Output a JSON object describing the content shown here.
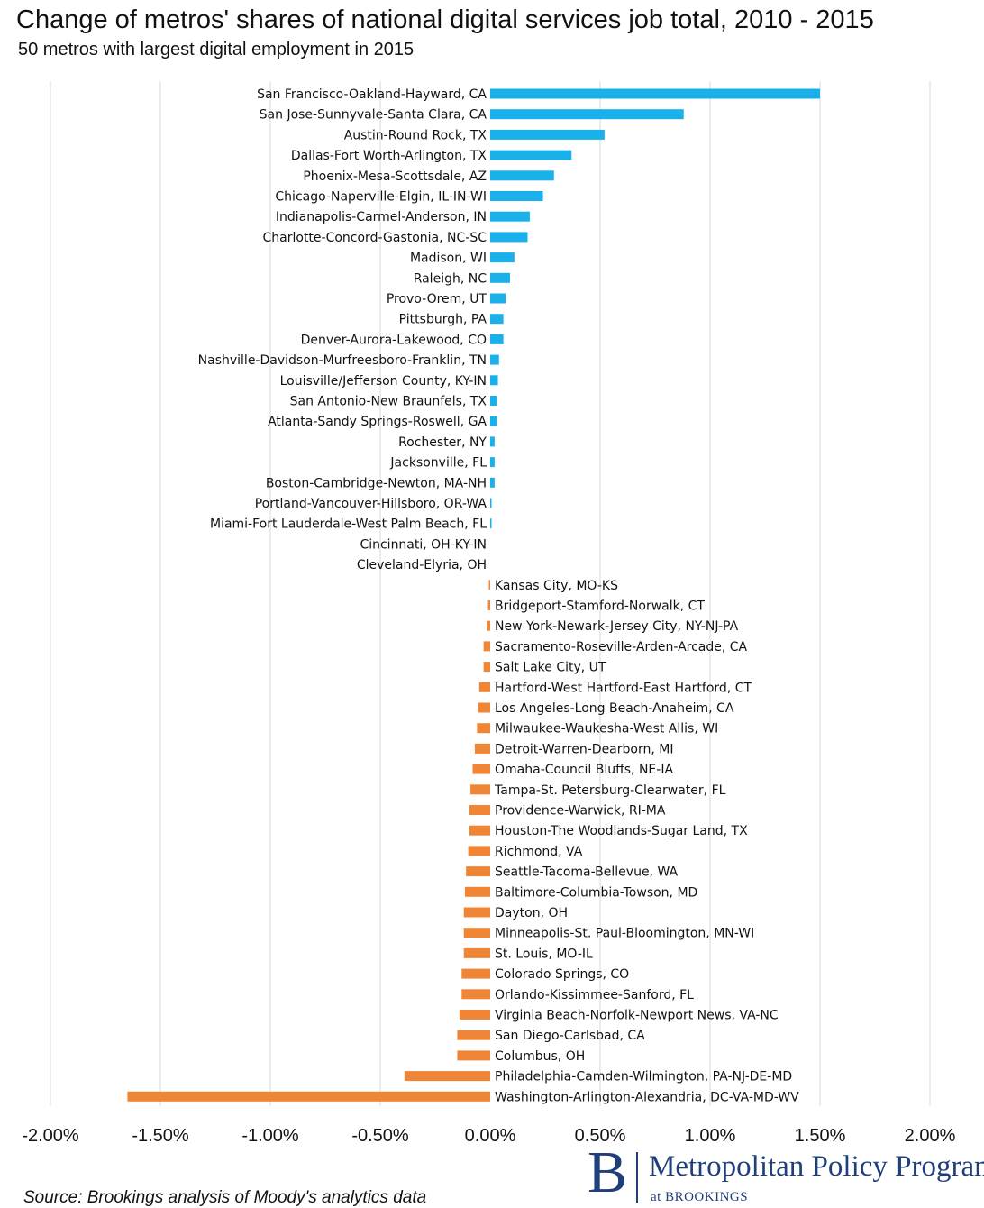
{
  "title": "Change of metros' shares of national digital services job total, 2010 - 2015",
  "subtitle": "50 metros with largest digital employment in 2015",
  "source": "Source: Brookings analysis of Moody's analytics data",
  "logo": {
    "main": "Metropolitan Policy Program",
    "sub": "at BROOKINGS",
    "letter": "B"
  },
  "colors": {
    "positive": "#1ab0ea",
    "negative": "#f08536",
    "grid": "#d9d9d9",
    "logo": "#1f3f7a"
  },
  "chart_data": {
    "type": "bar",
    "orientation": "horizontal",
    "title": "Change of metros' shares of national digital services job total, 2010 - 2015",
    "subtitle": "50 metros with largest digital employment in 2015",
    "xlim": [
      -2.0,
      2.0
    ],
    "xticks": [
      "-2.00%",
      "-1.50%",
      "-1.00%",
      "-0.50%",
      "0.00%",
      "0.50%",
      "1.00%",
      "1.50%",
      "2.00%"
    ],
    "xtick_values": [
      -2.0,
      -1.5,
      -1.0,
      -0.5,
      0.0,
      0.5,
      1.0,
      1.5,
      2.0
    ],
    "unit": "%",
    "grid": "vertical",
    "categories": [
      "San Francisco-Oakland-Hayward, CA",
      "San Jose-Sunnyvale-Santa Clara, CA",
      "Austin-Round Rock, TX",
      "Dallas-Fort Worth-Arlington, TX",
      "Phoenix-Mesa-Scottsdale, AZ",
      "Chicago-Naperville-Elgin, IL-IN-WI",
      "Indianapolis-Carmel-Anderson, IN",
      "Charlotte-Concord-Gastonia, NC-SC",
      "Madison, WI",
      "Raleigh, NC",
      "Provo-Orem, UT",
      "Pittsburgh, PA",
      "Denver-Aurora-Lakewood, CO",
      "Nashville-Davidson-Murfreesboro-Franklin, TN",
      "Louisville/Jefferson County, KY-IN",
      "San Antonio-New Braunfels, TX",
      "Atlanta-Sandy Springs-Roswell, GA",
      "Rochester, NY",
      "Jacksonville, FL",
      "Boston-Cambridge-Newton, MA-NH",
      "Portland-Vancouver-Hillsboro, OR-WA",
      "Miami-Fort Lauderdale-West Palm Beach, FL",
      "Cincinnati, OH-KY-IN",
      "Cleveland-Elyria, OH",
      "Kansas City, MO-KS",
      "Bridgeport-Stamford-Norwalk, CT",
      "New York-Newark-Jersey City, NY-NJ-PA",
      "Sacramento-Roseville-Arden-Arcade, CA",
      "Salt Lake City, UT",
      "Hartford-West Hartford-East Hartford, CT",
      "Los Angeles-Long Beach-Anaheim, CA",
      "Milwaukee-Waukesha-West Allis, WI",
      "Detroit-Warren-Dearborn, MI",
      "Omaha-Council Bluffs, NE-IA",
      "Tampa-St. Petersburg-Clearwater, FL",
      "Providence-Warwick, RI-MA",
      "Houston-The Woodlands-Sugar Land, TX",
      "Richmond, VA",
      "Seattle-Tacoma-Bellevue, WA",
      "Baltimore-Columbia-Towson, MD",
      "Dayton, OH",
      "Minneapolis-St. Paul-Bloomington, MN-WI",
      "St. Louis, MO-IL",
      "Colorado Springs, CO",
      "Orlando-Kissimmee-Sanford, FL",
      "Virginia Beach-Norfolk-Newport News, VA-NC",
      "San Diego-Carlsbad, CA",
      "Columbus, OH",
      "Philadelphia-Camden-Wilmington, PA-NJ-DE-MD",
      "Washington-Arlington-Alexandria, DC-VA-MD-WV"
    ],
    "values": [
      1.5,
      0.88,
      0.52,
      0.37,
      0.29,
      0.24,
      0.18,
      0.17,
      0.11,
      0.09,
      0.07,
      0.06,
      0.06,
      0.04,
      0.035,
      0.03,
      0.03,
      0.02,
      0.02,
      0.02,
      0.005,
      0.003,
      0.0,
      0.0,
      -0.002,
      -0.01,
      -0.015,
      -0.03,
      -0.03,
      -0.05,
      -0.055,
      -0.06,
      -0.07,
      -0.08,
      -0.09,
      -0.095,
      -0.095,
      -0.1,
      -0.11,
      -0.115,
      -0.12,
      -0.12,
      -0.12,
      -0.13,
      -0.13,
      -0.14,
      -0.15,
      -0.15,
      -0.39,
      -1.65
    ]
  }
}
